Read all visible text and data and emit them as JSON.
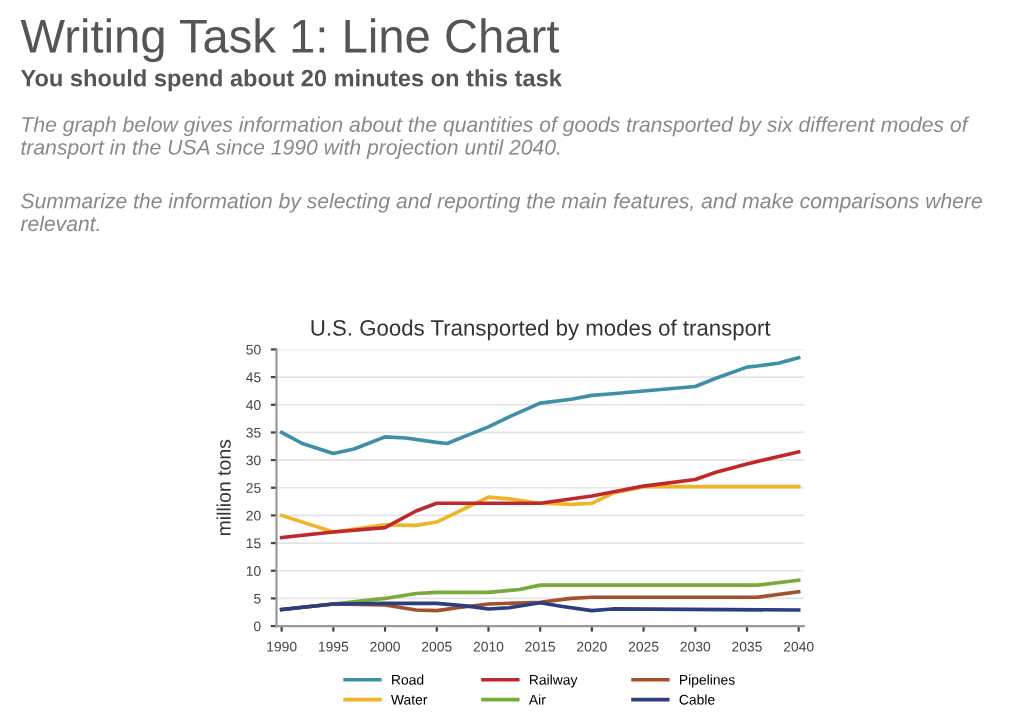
{
  "chart_data": {
    "type": "line",
    "title": "U.S. Goods Transported by modes of transport",
    "ylabel": "million tons",
    "annotations": [
      "Writing Task 1: Line Chart",
      "You should spend about 20 minutes on this task",
      "The graph below gives information about the quantities of goods transported by six different modes of transport in the USA since 1990 with projection until 2040.",
      "Summarize the information by selecting and reporting the main features, and make comparisons where relevant."
    ],
    "series": [
      {
        "name": "Road",
        "color": "#3e8fa8",
        "x": [
          1990,
          1992,
          1995,
          1997,
          2000,
          2002,
          2005,
          2006,
          2008,
          2010,
          2012,
          2015,
          2018,
          2020,
          2022,
          2025,
          2030,
          2032,
          2035,
          2036,
          2038,
          2040
        ],
        "values": [
          35,
          33,
          31.2,
          32,
          34.2,
          34,
          33.2,
          33,
          34.5,
          36,
          37.8,
          40.3,
          41,
          41.7,
          42,
          42.5,
          43.3,
          44.8,
          46.8,
          47,
          47.5,
          48.5
        ]
      },
      {
        "name": "Water",
        "color": "#f0b429",
        "x": [
          1990,
          1995,
          2000,
          2003,
          2005,
          2008,
          2010,
          2012,
          2015,
          2018,
          2020,
          2022,
          2025,
          2040
        ],
        "values": [
          20,
          17,
          18.3,
          18.2,
          18.8,
          21.5,
          23.3,
          23,
          22.2,
          22,
          22.2,
          24,
          25.2,
          25.2
        ]
      },
      {
        "name": "Railway",
        "color": "#c0282b",
        "x": [
          1990,
          1995,
          2000,
          2003,
          2005,
          2010,
          2015,
          2020,
          2025,
          2030,
          2032,
          2035,
          2040
        ],
        "values": [
          16,
          17,
          17.8,
          20.8,
          22.2,
          22.2,
          22.2,
          23.5,
          25.3,
          26.5,
          27.8,
          29.3,
          31.5
        ]
      },
      {
        "name": "Air",
        "color": "#7aab3a",
        "x": [
          1990,
          1995,
          2000,
          2003,
          2005,
          2010,
          2013,
          2015,
          2020,
          2030,
          2036,
          2040
        ],
        "values": [
          3,
          4,
          5,
          5.9,
          6.1,
          6.1,
          6.6,
          7.4,
          7.4,
          7.4,
          7.4,
          8.3
        ]
      },
      {
        "name": "Pipelines",
        "color": "#a0522d",
        "x": [
          1990,
          1995,
          2000,
          2003,
          2005,
          2007,
          2010,
          2015,
          2018,
          2020,
          2036,
          2040
        ],
        "values": [
          3,
          4,
          3.8,
          2.9,
          2.8,
          3.3,
          4,
          4.3,
          5,
          5.2,
          5.2,
          6.2
        ]
      },
      {
        "name": "Cable",
        "color": "#2c3e80",
        "x": [
          1990,
          1995,
          2000,
          2005,
          2008,
          2010,
          2012,
          2015,
          2017,
          2020,
          2022,
          2040
        ],
        "values": [
          3,
          4,
          4.1,
          4.1,
          3.6,
          3.1,
          3.3,
          4.2,
          3.6,
          2.8,
          3.1,
          2.9
        ]
      }
    ],
    "xlim": [
      1989.5,
      2040.5
    ],
    "xticks": [
      1990,
      1995,
      2000,
      2005,
      2010,
      2015,
      2020,
      2025,
      2030,
      2035,
      2040
    ],
    "ylim": [
      0,
      50
    ],
    "yticks": [
      0,
      5,
      10,
      15,
      20,
      25,
      30,
      35,
      40,
      45,
      50
    ],
    "grid": "y",
    "legend": "bottom",
    "marker": "none",
    "line_style": "solid"
  }
}
